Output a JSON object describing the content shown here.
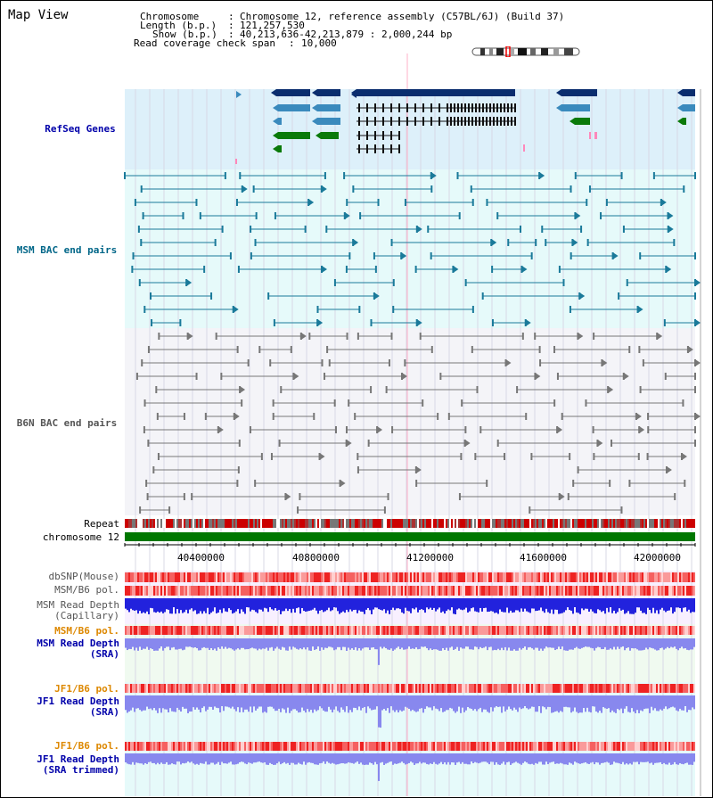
{
  "title": "Map View",
  "info": {
    "chromosome_key": "Chromosome",
    "chromosome_val": "Chromosome 12, reference assembly (C57BL/6J) (Build 37)",
    "length_key": "Length (b.p.)",
    "length_val": "121,257,530",
    "show_key": "Show (b.p.)",
    "show_val": "40,213,636-42,213,879 : 2,000,244 bp",
    "coverage_key": "Read coverage check span",
    "coverage_val": "10,000"
  },
  "tracks": {
    "refseq": "RefSeq Genes",
    "msm_bac": "MSM BAC end pairs",
    "b6n_bac": "B6N BAC end pairs",
    "repeat": "Repeat",
    "chromosome": "chromosome 12",
    "dbsnp": "dbSNP(Mouse)",
    "msm_b6_pol1": "MSM/B6 pol.",
    "msm_depth_cap_1": "MSM Read Depth",
    "msm_depth_cap_2": "(Capillary)",
    "msm_b6_pol2": "MSM/B6 pol.",
    "msm_depth_sra_1": "MSM Read Depth",
    "msm_depth_sra_2": "(SRA)",
    "jf1_pol1": "JF1/B6 pol.",
    "jf1_depth_sra_1": "JF1 Read Depth",
    "jf1_depth_sra_2": "(SRA)",
    "jf1_pol2": "JF1/B6 pol.",
    "jf1_depth_trim_1": "JF1 Read Depth",
    "jf1_depth_trim_2": "(SRA trimmed)"
  },
  "axis": {
    "ticks": [
      "40400000",
      "40800000",
      "41200000",
      "41600000",
      "42000000"
    ]
  },
  "colors": {
    "refseq_bg": "#ddf0fa",
    "msm_bg": "#e6fafa",
    "b6n_bg": "#f4f4f8",
    "gene_dark": "#0a2d6e",
    "gene_mid": "#3a8abd",
    "gene_green": "#0a7a0a",
    "bac_teal": "#1a7a9a",
    "bac_gray": "#777777",
    "chrom_green": "#007700",
    "depth_blue": "#2222dd",
    "depth_light": "#8888ee",
    "label_blue": "#0000aa",
    "label_teal": "#006688",
    "label_orange": "#dd8800",
    "label_gray": "#555555"
  }
}
